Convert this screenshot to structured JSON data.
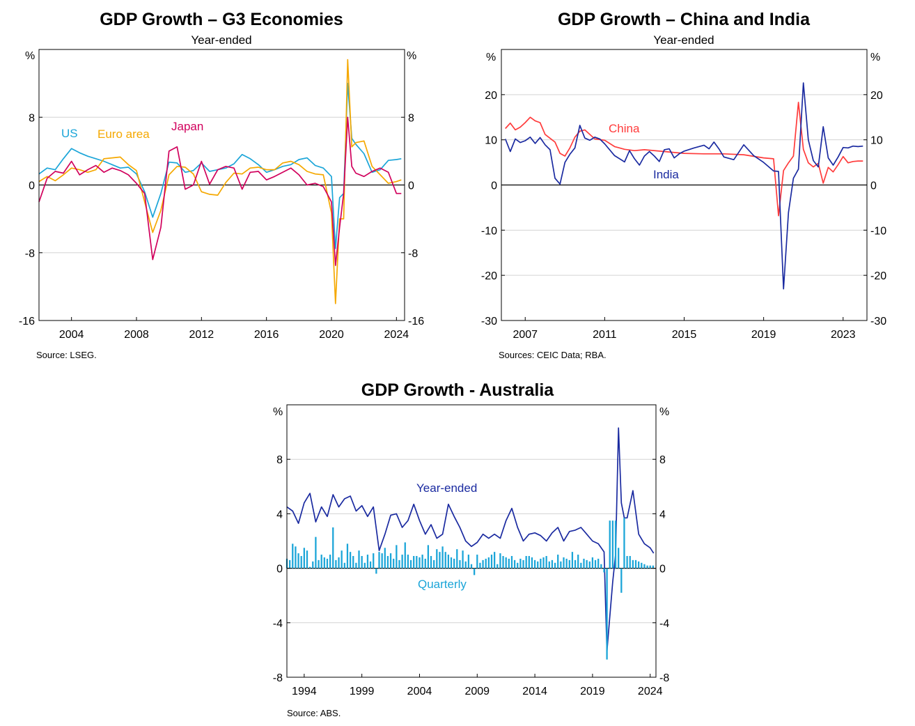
{
  "chart_data": [
    {
      "type": "line",
      "title": "GDP Growth – G3 Economies",
      "subtitle": "Year-ended",
      "ylabel_left": "%",
      "ylabel_right": "%",
      "ylim": [
        -16,
        16
      ],
      "y_ticks": [
        -16,
        -8,
        0,
        8
      ],
      "xlim": [
        2002,
        2024.5
      ],
      "x_ticks": [
        2004,
        2008,
        2012,
        2016,
        2020,
        2024
      ],
      "grid": true,
      "source": "Source:   LSEG.",
      "series": [
        {
          "name": "US",
          "color": "#1ba5d8",
          "x": [
            2002.0,
            2002.5,
            2003.0,
            2003.5,
            2004.0,
            2004.5,
            2005.0,
            2005.5,
            2006.0,
            2006.5,
            2007.0,
            2007.5,
            2008.0,
            2008.5,
            2009.0,
            2009.5,
            2010.0,
            2010.5,
            2011.0,
            2011.5,
            2012.0,
            2012.5,
            2013.0,
            2013.5,
            2014.0,
            2014.5,
            2015.0,
            2015.5,
            2016.0,
            2016.5,
            2017.0,
            2017.5,
            2018.0,
            2018.5,
            2019.0,
            2019.5,
            2020.0,
            2020.25,
            2020.5,
            2020.75,
            2021.0,
            2021.25,
            2021.5,
            2022.0,
            2022.5,
            2023.0,
            2023.5,
            2024.0,
            2024.3
          ],
          "y": [
            1.3,
            2.0,
            1.8,
            3.1,
            4.3,
            3.8,
            3.4,
            3.1,
            2.8,
            2.4,
            2.0,
            2.1,
            1.3,
            -0.8,
            -3.8,
            -1.0,
            2.7,
            2.6,
            1.5,
            1.7,
            2.6,
            1.6,
            1.8,
            2.0,
            2.5,
            3.6,
            3.1,
            2.4,
            1.5,
            1.8,
            2.2,
            2.4,
            3.0,
            3.2,
            2.3,
            2.0,
            1.0,
            -7.5,
            -1.5,
            -1.0,
            12.0,
            5.5,
            4.8,
            3.7,
            1.5,
            1.8,
            2.9,
            3.0,
            3.1
          ]
        },
        {
          "name": "Euro area",
          "color": "#f5a800",
          "x": [
            2002.0,
            2002.5,
            2003.0,
            2003.5,
            2004.0,
            2004.5,
            2005.0,
            2005.5,
            2006.0,
            2006.5,
            2007.0,
            2007.5,
            2008.0,
            2008.5,
            2009.0,
            2009.5,
            2010.0,
            2010.5,
            2011.0,
            2011.5,
            2012.0,
            2012.5,
            2013.0,
            2013.5,
            2014.0,
            2014.5,
            2015.0,
            2015.5,
            2016.0,
            2016.5,
            2017.0,
            2017.5,
            2018.0,
            2018.5,
            2019.0,
            2019.5,
            2020.0,
            2020.25,
            2020.5,
            2020.75,
            2021.0,
            2021.25,
            2021.5,
            2022.0,
            2022.5,
            2023.0,
            2023.5,
            2024.0,
            2024.3
          ],
          "y": [
            0.4,
            1.0,
            0.5,
            1.2,
            2.0,
            1.8,
            1.5,
            1.8,
            3.1,
            3.2,
            3.3,
            2.4,
            1.7,
            -2.0,
            -5.6,
            -3.0,
            1.2,
            2.2,
            2.1,
            1.3,
            -0.8,
            -1.1,
            -1.2,
            0.3,
            1.4,
            1.3,
            2.0,
            2.1,
            1.8,
            1.8,
            2.6,
            2.8,
            2.4,
            1.6,
            1.3,
            1.2,
            -3.3,
            -14.0,
            -4.0,
            -4.0,
            14.8,
            4.5,
            5.0,
            5.2,
            2.2,
            1.2,
            0.2,
            0.4,
            0.6
          ]
        },
        {
          "name": "Japan",
          "color": "#d1005c",
          "x": [
            2002.0,
            2002.5,
            2003.0,
            2003.5,
            2004.0,
            2004.5,
            2005.0,
            2005.5,
            2006.0,
            2006.5,
            2007.0,
            2007.5,
            2008.0,
            2008.5,
            2009.0,
            2009.5,
            2010.0,
            2010.5,
            2011.0,
            2011.5,
            2012.0,
            2012.5,
            2013.0,
            2013.5,
            2014.0,
            2014.5,
            2015.0,
            2015.5,
            2016.0,
            2016.5,
            2017.0,
            2017.5,
            2018.0,
            2018.5,
            2019.0,
            2019.5,
            2020.0,
            2020.25,
            2020.5,
            2020.75,
            2021.0,
            2021.25,
            2021.5,
            2022.0,
            2022.5,
            2023.0,
            2023.5,
            2024.0,
            2024.3
          ],
          "y": [
            -2.0,
            0.8,
            1.6,
            1.4,
            2.8,
            1.2,
            1.8,
            2.3,
            1.5,
            2.0,
            1.7,
            1.2,
            0.2,
            -1.0,
            -8.8,
            -5.0,
            4.0,
            4.5,
            -0.5,
            0.0,
            2.8,
            0.1,
            1.8,
            2.2,
            2.0,
            -0.5,
            1.5,
            1.6,
            0.6,
            1.0,
            1.5,
            2.0,
            1.2,
            0.0,
            0.2,
            -0.2,
            -2.0,
            -9.5,
            -5.0,
            -1.0,
            8.0,
            2.2,
            1.4,
            1.0,
            1.6,
            2.0,
            1.5,
            -1.0,
            -1.0
          ]
        }
      ]
    },
    {
      "type": "line",
      "title": "GDP Growth – China and India",
      "subtitle": "Year-ended",
      "ylabel_left": "%",
      "ylabel_right": "%",
      "ylim": [
        -30,
        30
      ],
      "y_ticks": [
        -30,
        -20,
        -10,
        0,
        10,
        20
      ],
      "xlim": [
        2005.8,
        2024.2
      ],
      "x_ticks": [
        2007,
        2011,
        2015,
        2019,
        2023
      ],
      "grid": true,
      "source": "Sources: CEIC Data; RBA.",
      "series": [
        {
          "name": "China",
          "color": "#ff3b3b",
          "x": [
            2006.0,
            2006.25,
            2006.5,
            2006.75,
            2007.0,
            2007.25,
            2007.5,
            2007.75,
            2008.0,
            2008.5,
            2008.75,
            2009.0,
            2009.25,
            2009.5,
            2009.75,
            2010.0,
            2010.5,
            2011.0,
            2011.5,
            2012.0,
            2012.5,
            2013.0,
            2014.0,
            2015.0,
            2016.0,
            2017.0,
            2018.0,
            2019.0,
            2019.5,
            2019.75,
            2020.0,
            2020.25,
            2020.5,
            2020.75,
            2021.0,
            2021.25,
            2021.5,
            2021.75,
            2022.0,
            2022.25,
            2022.5,
            2022.75,
            2023.0,
            2023.25,
            2023.5,
            2023.75,
            2024.0
          ],
          "y": [
            12.5,
            13.7,
            12.2,
            12.8,
            13.8,
            15.0,
            14.2,
            13.8,
            11.2,
            9.5,
            7.0,
            6.4,
            8.2,
            10.6,
            11.9,
            12.2,
            10.2,
            9.9,
            8.5,
            7.9,
            7.6,
            7.8,
            7.4,
            7.0,
            6.9,
            6.9,
            6.7,
            6.0,
            5.8,
            -6.8,
            3.2,
            4.9,
            6.4,
            18.3,
            7.9,
            4.9,
            4.0,
            4.8,
            0.4,
            3.9,
            2.9,
            4.5,
            6.3,
            4.9,
            5.2,
            5.3,
            5.3
          ]
        },
        {
          "name": "India",
          "color": "#1a2aa0",
          "x": [
            2006.0,
            2006.25,
            2006.5,
            2006.75,
            2007.0,
            2007.25,
            2007.5,
            2007.75,
            2008.0,
            2008.25,
            2008.5,
            2008.75,
            2009.0,
            2009.25,
            2009.5,
            2009.75,
            2010.0,
            2010.25,
            2010.5,
            2010.75,
            2011.0,
            2011.5,
            2012.0,
            2012.25,
            2012.5,
            2012.75,
            2013.0,
            2013.25,
            2013.5,
            2013.75,
            2014.0,
            2014.25,
            2014.5,
            2014.75,
            2015.0,
            2015.5,
            2016.0,
            2016.25,
            2016.5,
            2016.75,
            2017.0,
            2017.5,
            2018.0,
            2018.5,
            2019.0,
            2019.5,
            2019.75,
            2020.0,
            2020.25,
            2020.5,
            2020.75,
            2021.0,
            2021.25,
            2021.5,
            2021.75,
            2022.0,
            2022.25,
            2022.5,
            2022.75,
            2023.0,
            2023.25,
            2023.5,
            2023.75,
            2024.0
          ],
          "y": [
            10.2,
            7.4,
            10.2,
            9.4,
            9.8,
            10.6,
            9.2,
            10.5,
            8.9,
            7.8,
            1.5,
            0.2,
            5.0,
            6.8,
            8.2,
            13.2,
            10.4,
            9.9,
            10.6,
            10.2,
            9.1,
            6.5,
            5.1,
            7.6,
            5.8,
            4.4,
            6.4,
            7.4,
            6.4,
            5.2,
            7.8,
            8.0,
            6.0,
            6.9,
            7.5,
            8.2,
            8.8,
            8.0,
            9.5,
            8.0,
            6.2,
            5.6,
            8.9,
            6.5,
            5.0,
            3.1,
            3.0,
            -23.0,
            -6.1,
            1.5,
            3.5,
            22.6,
            10.0,
            5.4,
            4.0,
            12.9,
            6.0,
            4.4,
            6.2,
            8.3,
            8.2,
            8.6,
            8.5,
            8.6
          ]
        }
      ]
    },
    {
      "type": "bar+line",
      "title": "GDP Growth - Australia",
      "ylabel_left": "%",
      "ylabel_right": "%",
      "ylim": [
        -8,
        12
      ],
      "y_ticks": [
        -8,
        -4,
        0,
        4,
        8
      ],
      "xlim": [
        1992.5,
        2024.5
      ],
      "x_ticks": [
        1994,
        1999,
        2004,
        2009,
        2014,
        2019,
        2024
      ],
      "grid": true,
      "source": "Source:   ABS.",
      "series": [
        {
          "name": "Year-ended",
          "type": "line",
          "color": "#1a2aa0",
          "x": [
            1992.5,
            1993.0,
            1993.5,
            1994.0,
            1994.5,
            1995.0,
            1995.5,
            1996.0,
            1996.5,
            1997.0,
            1997.5,
            1998.0,
            1998.5,
            1999.0,
            1999.5,
            2000.0,
            2000.5,
            2001.0,
            2001.5,
            2002.0,
            2002.5,
            2003.0,
            2003.5,
            2004.0,
            2004.5,
            2005.0,
            2005.5,
            2006.0,
            2006.5,
            2007.0,
            2007.5,
            2008.0,
            2008.5,
            2009.0,
            2009.5,
            2010.0,
            2010.5,
            2011.0,
            2011.5,
            2012.0,
            2012.5,
            2013.0,
            2013.5,
            2014.0,
            2014.5,
            2015.0,
            2015.5,
            2016.0,
            2016.5,
            2017.0,
            2017.5,
            2018.0,
            2018.5,
            2019.0,
            2019.5,
            2020.0,
            2020.25,
            2020.5,
            2020.75,
            2021.0,
            2021.25,
            2021.5,
            2021.75,
            2022.0,
            2022.5,
            2023.0,
            2023.5,
            2024.0,
            2024.3
          ],
          "y": [
            4.5,
            4.2,
            3.3,
            4.8,
            5.5,
            3.4,
            4.5,
            3.8,
            5.4,
            4.5,
            5.1,
            5.3,
            4.2,
            4.6,
            3.8,
            4.5,
            1.3,
            2.5,
            3.9,
            4.0,
            3.0,
            3.5,
            4.7,
            3.5,
            2.5,
            3.2,
            2.2,
            2.5,
            4.7,
            3.8,
            3.0,
            2.0,
            1.6,
            1.9,
            2.5,
            2.2,
            2.5,
            2.2,
            3.5,
            4.4,
            3.0,
            2.0,
            2.5,
            2.6,
            2.4,
            2.0,
            2.6,
            3.0,
            2.0,
            2.7,
            2.8,
            3.0,
            2.5,
            2.0,
            1.8,
            1.2,
            -6.1,
            -3.5,
            -1.0,
            1.0,
            10.3,
            4.8,
            3.7,
            3.7,
            5.7,
            2.5,
            1.8,
            1.5,
            1.1
          ]
        },
        {
          "name": "Quarterly",
          "type": "bar",
          "color": "#1ba5d8",
          "x": [
            1992.5,
            1992.75,
            1993.0,
            1993.25,
            1993.5,
            1993.75,
            1994.0,
            1994.25,
            1994.5,
            1994.75,
            1995.0,
            1995.25,
            1995.5,
            1995.75,
            1996.0,
            1996.25,
            1996.5,
            1996.75,
            1997.0,
            1997.25,
            1997.5,
            1997.75,
            1998.0,
            1998.25,
            1998.5,
            1998.75,
            1999.0,
            1999.25,
            1999.5,
            1999.75,
            2000.0,
            2000.25,
            2000.5,
            2000.75,
            2001.0,
            2001.25,
            2001.5,
            2001.75,
            2002.0,
            2002.25,
            2002.5,
            2002.75,
            2003.0,
            2003.25,
            2003.5,
            2003.75,
            2004.0,
            2004.25,
            2004.5,
            2004.75,
            2005.0,
            2005.25,
            2005.5,
            2005.75,
            2006.0,
            2006.25,
            2006.5,
            2006.75,
            2007.0,
            2007.25,
            2007.5,
            2007.75,
            2008.0,
            2008.25,
            2008.5,
            2008.75,
            2009.0,
            2009.25,
            2009.5,
            2009.75,
            2010.0,
            2010.25,
            2010.5,
            2010.75,
            2011.0,
            2011.25,
            2011.5,
            2011.75,
            2012.0,
            2012.25,
            2012.5,
            2012.75,
            2013.0,
            2013.25,
            2013.5,
            2013.75,
            2014.0,
            2014.25,
            2014.5,
            2014.75,
            2015.0,
            2015.25,
            2015.5,
            2015.75,
            2016.0,
            2016.25,
            2016.5,
            2016.75,
            2017.0,
            2017.25,
            2017.5,
            2017.75,
            2018.0,
            2018.25,
            2018.5,
            2018.75,
            2019.0,
            2019.25,
            2019.5,
            2019.75,
            2020.0,
            2020.25,
            2020.5,
            2020.75,
            2021.0,
            2021.25,
            2021.5,
            2021.75,
            2022.0,
            2022.25,
            2022.5,
            2022.75,
            2023.0,
            2023.25,
            2023.5,
            2023.75,
            2024.0,
            2024.25
          ],
          "y": [
            0.7,
            0.6,
            1.8,
            1.6,
            1.1,
            0.9,
            1.5,
            1.3,
            0.1,
            0.5,
            2.3,
            0.6,
            1.0,
            0.8,
            0.7,
            1.0,
            3.0,
            0.6,
            0.8,
            1.3,
            0.4,
            1.8,
            1.2,
            0.9,
            0.4,
            1.3,
            0.9,
            0.4,
            1.0,
            0.5,
            1.1,
            -0.4,
            1.2,
            1.1,
            1.5,
            0.9,
            1.1,
            0.7,
            1.7,
            0.6,
            1.0,
            1.9,
            1.0,
            0.6,
            0.9,
            0.9,
            0.8,
            1.0,
            0.7,
            1.7,
            0.9,
            0.6,
            1.4,
            1.2,
            1.6,
            1.2,
            1.0,
            0.8,
            0.7,
            1.4,
            0.6,
            1.3,
            0.5,
            1.0,
            0.3,
            -0.5,
            1.0,
            0.4,
            0.6,
            0.7,
            0.8,
            1.0,
            1.2,
            0.3,
            1.1,
            0.9,
            0.8,
            0.7,
            0.9,
            0.6,
            0.4,
            0.7,
            0.6,
            0.9,
            0.9,
            0.8,
            0.6,
            0.5,
            0.7,
            0.8,
            0.9,
            0.5,
            0.6,
            0.4,
            1.0,
            0.5,
            0.8,
            0.7,
            0.6,
            1.2,
            0.6,
            1.0,
            0.4,
            0.7,
            0.6,
            0.5,
            0.8,
            0.6,
            0.7,
            0.3,
            -0.3,
            -6.7,
            3.5,
            3.5,
            3.5,
            1.5,
            -1.8,
            3.7,
            0.9,
            0.9,
            0.6,
            0.6,
            0.5,
            0.4,
            0.3,
            0.2,
            0.2,
            0.2
          ]
        }
      ],
      "series_labels": {
        "year_ended": "Year-ended",
        "quarterly": "Quarterly"
      }
    }
  ]
}
